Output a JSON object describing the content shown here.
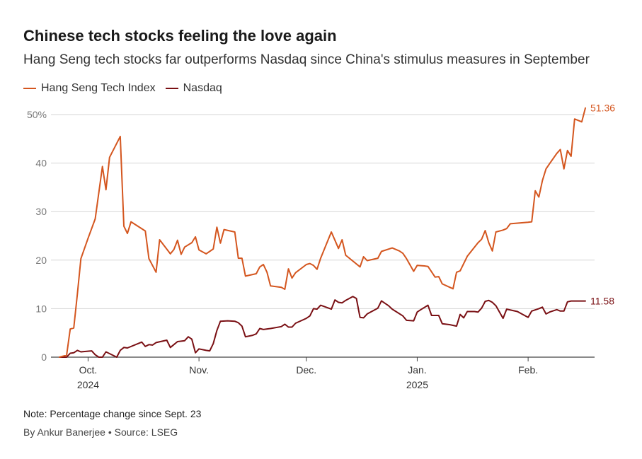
{
  "title": "Chinese tech stocks feeling the love again",
  "subtitle": "Hang Seng tech stocks far outperforms Nasdaq since China's stimulus measures in September",
  "note": "Note: Percentage change since Sept. 23",
  "source": "By Ankur Banerjee • Source: LSEG",
  "colors": {
    "hangseng": "#d4561f",
    "nasdaq": "#7a1014",
    "grid": "#d6d6d6",
    "axis": "#444444",
    "tick": "#777777"
  },
  "chart_data": {
    "type": "line",
    "title": "Chinese tech stocks feeling the love again",
    "xlabel": "",
    "ylabel": "",
    "ylim": [
      0,
      50
    ],
    "xlim_days": [
      -1,
      147
    ],
    "x_unit": "days since 2024-09-23",
    "y_ticks": [
      {
        "value": 0,
        "label": "0"
      },
      {
        "value": 10,
        "label": "10"
      },
      {
        "value": 20,
        "label": "20"
      },
      {
        "value": 30,
        "label": "30"
      },
      {
        "value": 40,
        "label": "40"
      },
      {
        "value": 50,
        "label": "50%"
      }
    ],
    "x_ticks": [
      {
        "day": 8,
        "label": "Oct.",
        "sublabel": "2024"
      },
      {
        "day": 39,
        "label": "Nov.",
        "sublabel": ""
      },
      {
        "day": 69,
        "label": "Dec.",
        "sublabel": ""
      },
      {
        "day": 100,
        "label": "Jan.",
        "sublabel": "2025"
      },
      {
        "day": 131,
        "label": "Feb.",
        "sublabel": ""
      }
    ],
    "series": [
      {
        "name": "Hang Seng Tech Index",
        "color": "#d4561f",
        "end_label": "51.36",
        "points": [
          [
            0,
            0
          ],
          [
            1,
            0.2
          ],
          [
            2,
            0.4
          ],
          [
            3,
            5.8
          ],
          [
            4,
            6
          ],
          [
            5,
            13
          ],
          [
            6,
            20.3
          ],
          [
            8,
            24.5
          ],
          [
            10,
            28.5
          ],
          [
            12,
            39.3
          ],
          [
            13,
            34.5
          ],
          [
            14,
            41.2
          ],
          [
            17,
            45.5
          ],
          [
            18,
            27
          ],
          [
            19,
            25.5
          ],
          [
            20,
            27.9
          ],
          [
            24,
            26
          ],
          [
            25,
            20.3
          ],
          [
            27,
            17.5
          ],
          [
            28,
            24.2
          ],
          [
            31,
            21.3
          ],
          [
            32,
            22.2
          ],
          [
            33,
            24.1
          ],
          [
            34,
            21.2
          ],
          [
            35,
            22.7
          ],
          [
            37,
            23.6
          ],
          [
            38,
            24.8
          ],
          [
            39,
            22.1
          ],
          [
            41,
            21.3
          ],
          [
            43,
            22.3
          ],
          [
            44,
            26.8
          ],
          [
            45,
            23.5
          ],
          [
            46,
            26.3
          ],
          [
            49,
            25.8
          ],
          [
            50,
            20.4
          ],
          [
            51,
            20.4
          ],
          [
            52,
            16.7
          ],
          [
            55,
            17.2
          ],
          [
            56,
            18.6
          ],
          [
            57,
            19.1
          ],
          [
            58,
            17.5
          ],
          [
            59,
            14.7
          ],
          [
            62,
            14.4
          ],
          [
            63,
            14
          ],
          [
            64,
            18.2
          ],
          [
            65,
            16.3
          ],
          [
            66,
            17.4
          ],
          [
            69,
            19.1
          ],
          [
            70,
            19.3
          ],
          [
            71,
            18.9
          ],
          [
            72,
            18.1
          ],
          [
            73,
            20.4
          ],
          [
            76,
            25.8
          ],
          [
            77,
            24.1
          ],
          [
            78,
            22.4
          ],
          [
            79,
            24.2
          ],
          [
            80,
            21
          ],
          [
            84,
            18.6
          ],
          [
            85,
            20.7
          ],
          [
            86,
            19.9
          ],
          [
            89,
            20.4
          ],
          [
            90,
            21.8
          ],
          [
            93,
            22.5
          ],
          [
            95,
            21.9
          ],
          [
            96,
            21.4
          ],
          [
            97,
            20.3
          ],
          [
            99,
            17.7
          ],
          [
            100,
            18.9
          ],
          [
            102,
            18.8
          ],
          [
            103,
            18.7
          ],
          [
            105,
            16.5
          ],
          [
            106,
            16.6
          ],
          [
            107,
            15.1
          ],
          [
            110,
            14.1
          ],
          [
            111,
            17.5
          ],
          [
            112,
            17.8
          ],
          [
            114,
            20.8
          ],
          [
            117,
            23.6
          ],
          [
            118,
            24.3
          ],
          [
            119,
            26.1
          ],
          [
            120,
            23.6
          ],
          [
            121,
            21.9
          ],
          [
            122,
            25.8
          ],
          [
            124,
            26.2
          ],
          [
            125,
            26.5
          ],
          [
            126,
            27.5
          ],
          [
            131,
            27.8
          ],
          [
            132,
            27.9
          ],
          [
            133,
            34.3
          ],
          [
            134,
            33
          ],
          [
            135,
            36.4
          ],
          [
            136,
            38.8
          ],
          [
            137,
            39.9
          ],
          [
            139,
            42
          ],
          [
            140,
            42.8
          ],
          [
            141,
            38.8
          ],
          [
            142,
            42.6
          ],
          [
            143,
            41.4
          ],
          [
            144,
            49.1
          ],
          [
            146,
            48.5
          ],
          [
            147,
            51.36
          ]
        ]
      },
      {
        "name": "Nasdaq",
        "color": "#7a1014",
        "end_label": "11.58",
        "points": [
          [
            0,
            0
          ],
          [
            2,
            0
          ],
          [
            3,
            0.8
          ],
          [
            4,
            0.9
          ],
          [
            5,
            1.4
          ],
          [
            6,
            1.1
          ],
          [
            9,
            1.3
          ],
          [
            10,
            0.5
          ],
          [
            11,
            0
          ],
          [
            12,
            0
          ],
          [
            13,
            1.1
          ],
          [
            16,
            0
          ],
          [
            17,
            1.4
          ],
          [
            18,
            2
          ],
          [
            19,
            1.9
          ],
          [
            23,
            3.1
          ],
          [
            24,
            2.2
          ],
          [
            25,
            2.6
          ],
          [
            26,
            2.5
          ],
          [
            27,
            3
          ],
          [
            30,
            3.5
          ],
          [
            31,
            2
          ],
          [
            32,
            2.6
          ],
          [
            33,
            3.2
          ],
          [
            35,
            3.4
          ],
          [
            36,
            4.2
          ],
          [
            37,
            3.7
          ],
          [
            38,
            0.9
          ],
          [
            39,
            1.7
          ],
          [
            41,
            1.4
          ],
          [
            42,
            1.3
          ],
          [
            43,
            2.8
          ],
          [
            44,
            5.5
          ],
          [
            45,
            7.4
          ],
          [
            47,
            7.5
          ],
          [
            49,
            7.4
          ],
          [
            50,
            7.1
          ],
          [
            51,
            6.4
          ],
          [
            52,
            4.2
          ],
          [
            54,
            4.5
          ],
          [
            55,
            4.8
          ],
          [
            56,
            5.9
          ],
          [
            57,
            5.7
          ],
          [
            59,
            5.9
          ],
          [
            62,
            6.3
          ],
          [
            63,
            6.8
          ],
          [
            64,
            6.2
          ],
          [
            65,
            6.2
          ],
          [
            66,
            7
          ],
          [
            69,
            8
          ],
          [
            70,
            8.5
          ],
          [
            71,
            10
          ],
          [
            72,
            9.9
          ],
          [
            73,
            10.7
          ],
          [
            76,
            9.9
          ],
          [
            77,
            11.8
          ],
          [
            78,
            11.3
          ],
          [
            79,
            11.2
          ],
          [
            80,
            11.7
          ],
          [
            82,
            12.5
          ],
          [
            83,
            12.1
          ],
          [
            84,
            8.2
          ],
          [
            85,
            8.1
          ],
          [
            86,
            8.9
          ],
          [
            89,
            10.1
          ],
          [
            90,
            11.6
          ],
          [
            92,
            10.6
          ],
          [
            93,
            9.9
          ],
          [
            96,
            8.5
          ],
          [
            97,
            7.6
          ],
          [
            99,
            7.5
          ],
          [
            100,
            9.3
          ],
          [
            101,
            9.8
          ],
          [
            103,
            10.7
          ],
          [
            104,
            8.6
          ],
          [
            106,
            8.6
          ],
          [
            107,
            6.9
          ],
          [
            109,
            6.7
          ],
          [
            111,
            6.4
          ],
          [
            112,
            8.8
          ],
          [
            113,
            8.1
          ],
          [
            114,
            9.4
          ],
          [
            116,
            9.4
          ],
          [
            117,
            9.3
          ],
          [
            118,
            10.1
          ],
          [
            119,
            11.5
          ],
          [
            120,
            11.7
          ],
          [
            121,
            11.3
          ],
          [
            122,
            10.6
          ],
          [
            124,
            8
          ],
          [
            125,
            9.9
          ],
          [
            128,
            9.4
          ],
          [
            129,
            9
          ],
          [
            131,
            8.2
          ],
          [
            132,
            9.5
          ],
          [
            134,
            10
          ],
          [
            135,
            10.3
          ],
          [
            136,
            8.9
          ],
          [
            137,
            9.3
          ],
          [
            139,
            9.8
          ],
          [
            140,
            9.5
          ],
          [
            141,
            9.5
          ],
          [
            142,
            11.4
          ],
          [
            143,
            11.58
          ],
          [
            147,
            11.58
          ]
        ]
      }
    ]
  }
}
